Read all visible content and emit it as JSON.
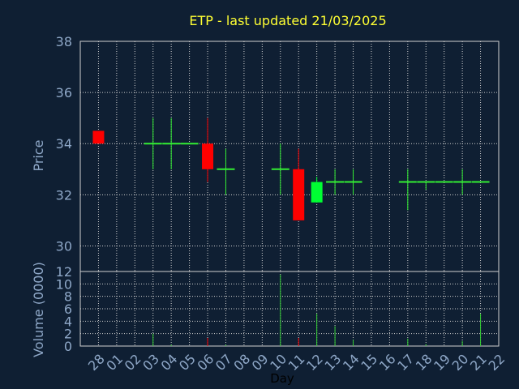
{
  "chart_data": {
    "type": "candlestick",
    "title": "ETP - last updated 21/03/2025",
    "xlabel": "Day",
    "categories": [
      "28",
      "01",
      "02",
      "03",
      "04",
      "05",
      "06",
      "07",
      "08",
      "09",
      "10",
      "11",
      "12",
      "13",
      "14",
      "15",
      "16",
      "17",
      "18",
      "19",
      "20",
      "21",
      "22"
    ],
    "price_panel": {
      "ylabel": "Price",
      "ylim": [
        29.0,
        38.0
      ],
      "yticks": [
        30,
        32,
        34,
        36,
        38
      ],
      "series": [
        {
          "day": "28",
          "open": 34.5,
          "high": 34.5,
          "low": 34.0,
          "close": 34.0
        },
        {
          "day": "03",
          "open": 34.0,
          "high": 35.0,
          "low": 33.0,
          "close": 34.0
        },
        {
          "day": "04",
          "open": 34.0,
          "high": 35.0,
          "low": 33.0,
          "close": 34.0
        },
        {
          "day": "05",
          "open": 34.0,
          "high": 34.0,
          "low": 34.0,
          "close": 34.0
        },
        {
          "day": "06",
          "open": 34.0,
          "high": 35.0,
          "low": 32.5,
          "close": 33.0
        },
        {
          "day": "07",
          "open": 33.0,
          "high": 33.8,
          "low": 32.0,
          "close": 33.0
        },
        {
          "day": "10",
          "open": 33.0,
          "high": 34.0,
          "low": 32.0,
          "close": 33.0
        },
        {
          "day": "11",
          "open": 33.0,
          "high": 33.8,
          "low": 31.0,
          "close": 31.0
        },
        {
          "day": "12",
          "open": 31.7,
          "high": 32.7,
          "low": 31.7,
          "close": 32.5
        },
        {
          "day": "13",
          "open": 32.5,
          "high": 33.0,
          "low": 32.0,
          "close": 32.5
        },
        {
          "day": "14",
          "open": 32.5,
          "high": 33.0,
          "low": 32.0,
          "close": 32.5
        },
        {
          "day": "17",
          "open": 32.5,
          "high": 33.0,
          "low": 31.4,
          "close": 32.5
        },
        {
          "day": "18",
          "open": 32.5,
          "high": 32.5,
          "low": 32.2,
          "close": 32.5
        },
        {
          "day": "19",
          "open": 32.5,
          "high": 32.5,
          "low": 32.5,
          "close": 32.5
        },
        {
          "day": "20",
          "open": 32.5,
          "high": 33.0,
          "low": 32.0,
          "close": 32.5
        },
        {
          "day": "21",
          "open": 32.5,
          "high": 32.5,
          "low": 32.5,
          "close": 32.5
        }
      ]
    },
    "volume_panel": {
      "ylabel": "Volume (0000)",
      "ylim": [
        0,
        12
      ],
      "yticks": [
        0,
        2,
        4,
        6,
        8,
        10,
        12
      ],
      "series": [
        {
          "day": "03",
          "value": 2.0
        },
        {
          "day": "04",
          "value": 0.2
        },
        {
          "day": "06",
          "value": 1.3
        },
        {
          "day": "07",
          "value": 0.2
        },
        {
          "day": "10",
          "value": 11.5
        },
        {
          "day": "11",
          "value": 1.3
        },
        {
          "day": "12",
          "value": 5.2
        },
        {
          "day": "13",
          "value": 3.2
        },
        {
          "day": "14",
          "value": 1.0
        },
        {
          "day": "17",
          "value": 1.2
        },
        {
          "day": "18",
          "value": 0.3
        },
        {
          "day": "20",
          "value": 0.8
        },
        {
          "day": "21",
          "value": 5.2
        }
      ]
    },
    "grid": true,
    "colors": {
      "background": "#0f1f33",
      "up": "#00ff33",
      "down": "#ff0000",
      "unchanged": "#33ee33",
      "volume": "#33cc33",
      "grid": "#d0d0d0",
      "title": "#ffff33",
      "ticks": "#8fa8c8"
    }
  }
}
